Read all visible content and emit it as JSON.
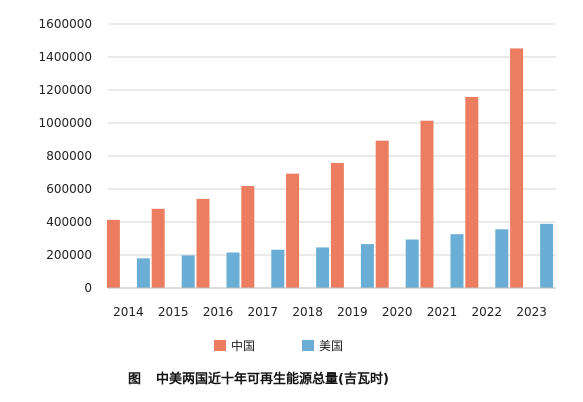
{
  "chart_data": {
    "type": "bar",
    "categories": [
      "2014",
      "2015",
      "2016",
      "2017",
      "2018",
      "2019",
      "2020",
      "2021",
      "2022",
      "2023"
    ],
    "series": [
      {
        "name": "中国",
        "color": "#ed7d60",
        "values": [
          413000,
          480000,
          540000,
          618000,
          693000,
          758000,
          893000,
          1014000,
          1158000,
          1452000
        ]
      },
      {
        "name": "美国",
        "color": "#6aaed6",
        "values": [
          180000,
          197000,
          215000,
          232000,
          246000,
          266000,
          294000,
          326000,
          356000,
          389000
        ]
      }
    ],
    "ylim": [
      0,
      1600000
    ],
    "yticks": [
      "0",
      "200000",
      "400000",
      "600000",
      "800000",
      "1000000",
      "1200000",
      "1400000",
      "1600000"
    ],
    "grid": true,
    "legend_position": "bottom",
    "title": "",
    "xlabel": "",
    "ylabel": ""
  },
  "caption": {
    "label": "图",
    "text": "中美两国近十年可再生能源总量(吉瓦时)"
  }
}
